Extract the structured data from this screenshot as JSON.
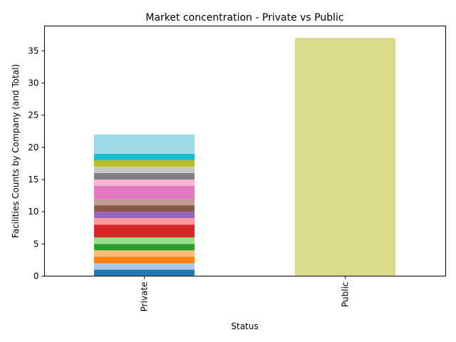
{
  "chart_data": {
    "type": "bar",
    "stacked": true,
    "title": "Market concentration - Private vs Public",
    "xlabel": "Status",
    "ylabel": "Facilities Counts by Company (and Total)",
    "categories": [
      "Private",
      "Public"
    ],
    "ylim": [
      0,
      38.85
    ],
    "yticks": [
      0,
      5,
      10,
      15,
      20,
      25,
      30,
      35
    ],
    "grid": false,
    "legend": "none",
    "private_segments": [
      {
        "value": 1,
        "color": "#1f77b4"
      },
      {
        "value": 1,
        "color": "#aec7e8"
      },
      {
        "value": 1,
        "color": "#ff7f0e"
      },
      {
        "value": 1,
        "color": "#ffbb78"
      },
      {
        "value": 1,
        "color": "#2ca02c"
      },
      {
        "value": 1,
        "color": "#98df8a"
      },
      {
        "value": 2,
        "color": "#d62728"
      },
      {
        "value": 1,
        "color": "#ff9896"
      },
      {
        "value": 1,
        "color": "#9467bd"
      },
      {
        "value": 1,
        "color": "#8c564b"
      },
      {
        "value": 1,
        "color": "#c49c94"
      },
      {
        "value": 2,
        "color": "#e377c2"
      },
      {
        "value": 1,
        "color": "#f7b6d2"
      },
      {
        "value": 1,
        "color": "#7f7f7f"
      },
      {
        "value": 1,
        "color": "#c7c7c7"
      },
      {
        "value": 1,
        "color": "#bcbd22"
      },
      {
        "value": 1,
        "color": "#17becf"
      },
      {
        "value": 3,
        "color": "#9edae5"
      }
    ],
    "public_total": {
      "value": 37,
      "color": "#dbdb8d"
    }
  }
}
